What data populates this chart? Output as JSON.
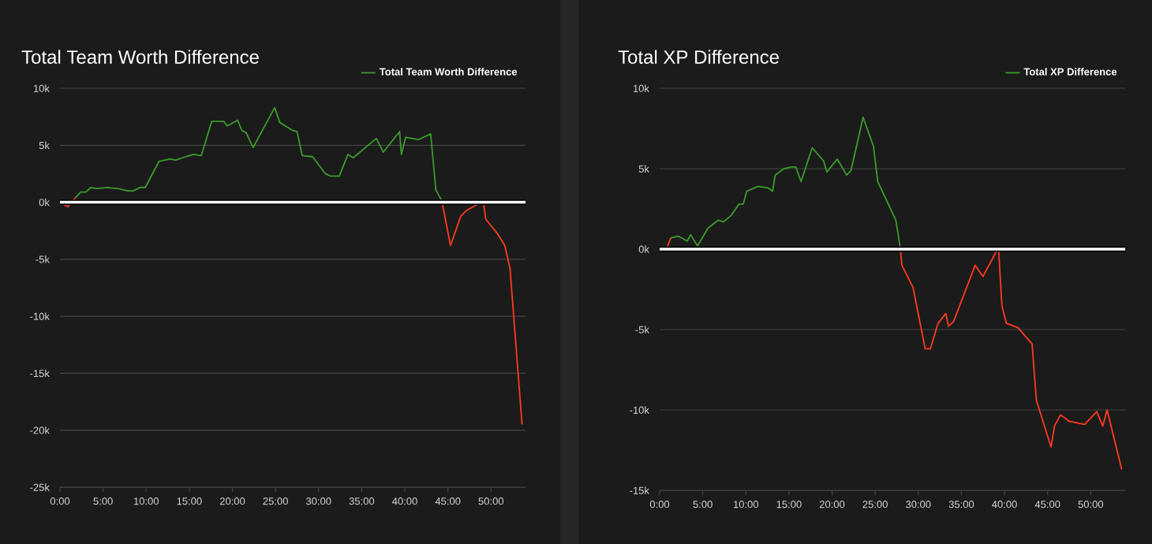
{
  "chart_data": [
    {
      "type": "line",
      "title": "Total Team Worth Difference",
      "x": [
        0,
        0.9,
        1.8,
        2.4,
        3.0,
        3.6,
        4.2,
        5.5,
        6.7,
        7.9,
        8.5,
        9.3,
        9.9,
        11.5,
        12.8,
        13.4,
        14.6,
        15.5,
        16.4,
        17.6,
        19.0,
        19.4,
        20.6,
        21.1,
        21.6,
        22.4,
        24.9,
        25.5,
        27.0,
        27.5,
        28.1,
        29.3,
        30.8,
        31.4,
        32.4,
        33.4,
        34.0,
        36.7,
        37.5,
        39.4,
        39.6,
        40.1,
        41.6,
        43.0,
        43.6,
        44.3,
        45.3,
        46.5,
        47.2,
        48.6,
        49.1,
        49.4,
        50.7,
        51.6,
        52.2,
        53.6
      ],
      "series": [
        {
          "name": "Total Team Worth Difference",
          "color": "#3c9a2c",
          "values": [
            null,
            null,
            400,
            900,
            900,
            1300,
            1200,
            1300,
            1200,
            1000,
            1000,
            1300,
            1300,
            3600,
            3800,
            3700,
            4000,
            4200,
            4100,
            7100,
            7100,
            6700,
            7200,
            6300,
            6100,
            4800,
            8300,
            7000,
            6300,
            6200,
            4100,
            4000,
            2500,
            2300,
            2300,
            4200,
            3900,
            5600,
            4400,
            6200,
            4200,
            5700,
            5500,
            6000,
            1100,
            100,
            null,
            null,
            null,
            null,
            null,
            null,
            null,
            null,
            null,
            null
          ]
        },
        {
          "color": "#ff3b1f",
          "values": [
            0,
            -400,
            400,
            null,
            null,
            null,
            null,
            null,
            null,
            null,
            null,
            null,
            null,
            null,
            null,
            null,
            null,
            null,
            null,
            null,
            null,
            null,
            null,
            null,
            null,
            null,
            null,
            null,
            null,
            null,
            null,
            null,
            null,
            null,
            null,
            null,
            null,
            null,
            null,
            null,
            null,
            null,
            null,
            null,
            null,
            100,
            -3800,
            -1200,
            -700,
            -100,
            100,
            -1500,
            -2700,
            -3800,
            -5800,
            -19500
          ]
        }
      ],
      "xlim": [
        0,
        54
      ],
      "ylim": [
        -25000,
        10000
      ],
      "xticks": [
        {
          "value": 0,
          "label": "0:00"
        },
        {
          "value": 5,
          "label": "5:00"
        },
        {
          "value": 10,
          "label": "10:00"
        },
        {
          "value": 15,
          "label": "15:00"
        },
        {
          "value": 20,
          "label": "20:00"
        },
        {
          "value": 25,
          "label": "25:00"
        },
        {
          "value": 30,
          "label": "30:00"
        },
        {
          "value": 35,
          "label": "35:00"
        },
        {
          "value": 40,
          "label": "40:00"
        },
        {
          "value": 45,
          "label": "45:00"
        },
        {
          "value": 50,
          "label": "50:00"
        }
      ],
      "yticks": [
        {
          "value": -25000,
          "label": "-25k"
        },
        {
          "value": -20000,
          "label": "-20k"
        },
        {
          "value": -15000,
          "label": "-15k"
        },
        {
          "value": -10000,
          "label": "-10k"
        },
        {
          "value": -5000,
          "label": "-5k"
        },
        {
          "value": 0,
          "label": "0k"
        },
        {
          "value": 5000,
          "label": "5k"
        },
        {
          "value": 10000,
          "label": "10k"
        }
      ],
      "ref_lines": [
        {
          "axis": "y",
          "value": 0,
          "color": "#ffffff"
        }
      ],
      "grid": "y",
      "legend": "top right",
      "marker": "none",
      "line_style": "solid"
    },
    {
      "type": "line",
      "title": "Total XP Difference",
      "x": [
        0,
        0.7,
        1.3,
        2.2,
        3.2,
        3.6,
        4.4,
        5.6,
        6.8,
        7.4,
        8.3,
        9.2,
        9.7,
        10.1,
        11.4,
        12.6,
        13.1,
        13.4,
        14.4,
        15.3,
        15.8,
        16.4,
        17.7,
        19.0,
        19.4,
        20.6,
        21.7,
        22.2,
        23.6,
        24.8,
        25.3,
        27.4,
        27.9,
        28.1,
        29.4,
        30.8,
        31.4,
        32.3,
        33.2,
        33.5,
        34.1,
        36.6,
        37.5,
        39.3,
        39.7,
        40.2,
        41.6,
        43.2,
        43.7,
        45.4,
        45.8,
        46.5,
        47.5,
        49.3,
        50.7,
        51.4,
        51.9,
        53.6
      ],
      "series": [
        {
          "name": "Total XP Difference",
          "color": "#3c9a2c",
          "values": [
            null,
            null,
            700,
            800,
            500,
            900,
            200,
            1300,
            1800,
            1700,
            2100,
            2800,
            2800,
            3600,
            3900,
            3800,
            3600,
            4600,
            5000,
            5100,
            5100,
            4200,
            6300,
            5500,
            4800,
            5600,
            4600,
            4900,
            8200,
            6400,
            4200,
            1800,
            100,
            null,
            null,
            null,
            null,
            null,
            null,
            null,
            null,
            null,
            null,
            null,
            null,
            null,
            null,
            null,
            null,
            null,
            null,
            null,
            null,
            null,
            null,
            null,
            null,
            null
          ]
        },
        {
          "color": "#ff3b1f",
          "values": [
            0,
            -100,
            700,
            null,
            null,
            null,
            null,
            null,
            null,
            null,
            null,
            null,
            null,
            null,
            null,
            null,
            null,
            null,
            null,
            null,
            null,
            null,
            null,
            null,
            null,
            null,
            null,
            null,
            null,
            null,
            null,
            null,
            100,
            -1000,
            -2400,
            -6200,
            -6200,
            -4600,
            -4000,
            -4800,
            -4500,
            -1000,
            -1700,
            100,
            -3500,
            -4600,
            -4900,
            -5900,
            -9400,
            -12300,
            -11000,
            -10300,
            -10700,
            -10900,
            -10100,
            -11000,
            -10000,
            -13700
          ]
        }
      ],
      "xlim": [
        0,
        54
      ],
      "ylim": [
        -15000,
        10000
      ],
      "xticks": [
        {
          "value": 0,
          "label": "0:00"
        },
        {
          "value": 5,
          "label": "5:00"
        },
        {
          "value": 10,
          "label": "10:00"
        },
        {
          "value": 15,
          "label": "15:00"
        },
        {
          "value": 20,
          "label": "20:00"
        },
        {
          "value": 25,
          "label": "25:00"
        },
        {
          "value": 30,
          "label": "30:00"
        },
        {
          "value": 35,
          "label": "35:00"
        },
        {
          "value": 40,
          "label": "40:00"
        },
        {
          "value": 45,
          "label": "45:00"
        },
        {
          "value": 50,
          "label": "50:00"
        }
      ],
      "yticks": [
        {
          "value": -15000,
          "label": "-15k"
        },
        {
          "value": -10000,
          "label": "-10k"
        },
        {
          "value": -5000,
          "label": "-5k"
        },
        {
          "value": 0,
          "label": "0k"
        },
        {
          "value": 5000,
          "label": "5k"
        },
        {
          "value": 10000,
          "label": "10k"
        }
      ],
      "ref_lines": [
        {
          "axis": "y",
          "value": 0,
          "color": "#ffffff"
        }
      ],
      "grid": "y",
      "legend": "top right",
      "marker": "none",
      "line_style": "solid"
    }
  ]
}
